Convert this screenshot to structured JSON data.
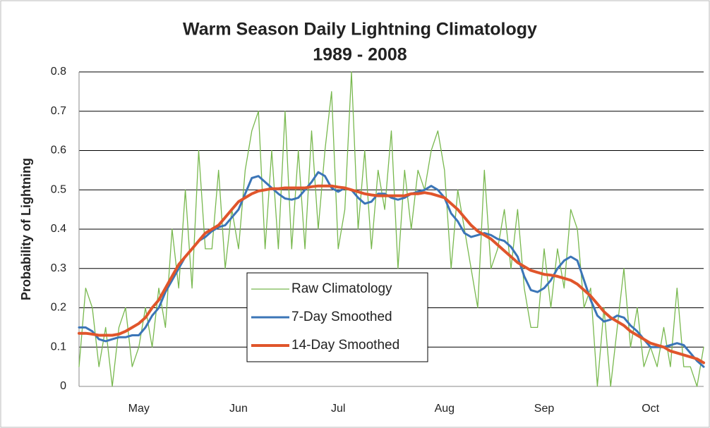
{
  "chart_data": {
    "type": "line",
    "title": "Warm Season Daily Lightning Climatology",
    "subtitle": "1989 - 2008",
    "y_label": "Probability of Lightning",
    "categories": [
      null,
      null,
      null,
      null,
      null,
      null,
      null,
      null,
      null,
      "May",
      null,
      null,
      null,
      null,
      null,
      null,
      null,
      null,
      null,
      null,
      null,
      null,
      null,
      null,
      "Jun",
      null,
      null,
      null,
      null,
      null,
      null,
      null,
      null,
      null,
      null,
      null,
      null,
      null,
      null,
      "Jul",
      null,
      null,
      null,
      null,
      null,
      null,
      null,
      null,
      null,
      null,
      null,
      null,
      null,
      null,
      null,
      "Aug",
      null,
      null,
      null,
      null,
      null,
      null,
      null,
      null,
      null,
      null,
      null,
      null,
      null,
      null,
      "Sep",
      null,
      null,
      null,
      null,
      null,
      null,
      null,
      null,
      null,
      null,
      null,
      null,
      null,
      null,
      null,
      "Oct",
      null,
      null,
      null,
      null,
      null,
      null,
      null,
      null
    ],
    "series": [
      {
        "name": "Raw Climatology",
        "color": "#78b84e",
        "width": 1.3,
        "values": [
          0.05,
          0.25,
          0.2,
          0.05,
          0.15,
          0,
          0.15,
          0.2,
          0.05,
          0.1,
          0.2,
          0.1,
          0.25,
          0.15,
          0.4,
          0.25,
          0.5,
          0.25,
          0.6,
          0.35,
          0.35,
          0.55,
          0.3,
          0.45,
          0.35,
          0.55,
          0.65,
          0.7,
          0.35,
          0.6,
          0.35,
          0.7,
          0.35,
          0.6,
          0.35,
          0.65,
          0.4,
          0.6,
          0.75,
          0.35,
          0.45,
          0.8,
          0.4,
          0.6,
          0.35,
          0.55,
          0.45,
          0.65,
          0.3,
          0.55,
          0.4,
          0.55,
          0.5,
          0.6,
          0.65,
          0.55,
          0.3,
          0.5,
          0.4,
          0.3,
          0.2,
          0.55,
          0.3,
          0.35,
          0.45,
          0.3,
          0.45,
          0.25,
          0.15,
          0.15,
          0.35,
          0.2,
          0.35,
          0.25,
          0.45,
          0.4,
          0.2,
          0.25,
          0,
          0.2,
          0,
          0.15,
          0.3,
          0.1,
          0.2,
          0.05,
          0.1,
          0.05,
          0.15,
          0.05,
          0.25,
          0.05,
          0.05,
          0,
          0.1
        ]
      },
      {
        "name": "7-Day Smoothed",
        "color": "#3b75b7",
        "width": 3,
        "values": [
          0.15,
          0.15,
          0.14,
          0.12,
          0.115,
          0.12,
          0.125,
          0.125,
          0.13,
          0.13,
          0.15,
          0.18,
          0.2,
          0.24,
          0.27,
          0.3,
          0.33,
          0.35,
          0.37,
          0.38,
          0.395,
          0.405,
          0.41,
          0.43,
          0.45,
          0.49,
          0.53,
          0.535,
          0.52,
          0.505,
          0.49,
          0.478,
          0.475,
          0.48,
          0.5,
          0.52,
          0.545,
          0.535,
          0.505,
          0.495,
          0.505,
          0.5,
          0.48,
          0.465,
          0.47,
          0.49,
          0.49,
          0.48,
          0.475,
          0.48,
          0.49,
          0.495,
          0.5,
          0.51,
          0.5,
          0.48,
          0.44,
          0.42,
          0.39,
          0.38,
          0.385,
          0.39,
          0.385,
          0.375,
          0.37,
          0.355,
          0.33,
          0.28,
          0.245,
          0.24,
          0.25,
          0.27,
          0.3,
          0.32,
          0.33,
          0.32,
          0.27,
          0.22,
          0.18,
          0.165,
          0.17,
          0.18,
          0.175,
          0.155,
          0.14,
          0.12,
          0.1,
          0.1,
          0.1,
          0.105,
          0.11,
          0.105,
          0.085,
          0.065,
          0.05
        ]
      },
      {
        "name": "14-Day Smoothed",
        "color": "#e0552b",
        "width": 4,
        "values": [
          0.135,
          0.135,
          0.133,
          0.13,
          0.13,
          0.13,
          0.133,
          0.14,
          0.15,
          0.16,
          0.175,
          0.2,
          0.22,
          0.25,
          0.28,
          0.31,
          0.33,
          0.35,
          0.37,
          0.39,
          0.4,
          0.41,
          0.43,
          0.45,
          0.47,
          0.48,
          0.49,
          0.497,
          0.5,
          0.503,
          0.503,
          0.505,
          0.505,
          0.505,
          0.505,
          0.508,
          0.51,
          0.51,
          0.51,
          0.507,
          0.505,
          0.5,
          0.495,
          0.49,
          0.487,
          0.485,
          0.485,
          0.485,
          0.485,
          0.485,
          0.49,
          0.49,
          0.493,
          0.49,
          0.485,
          0.48,
          0.465,
          0.45,
          0.43,
          0.41,
          0.395,
          0.385,
          0.375,
          0.36,
          0.345,
          0.33,
          0.315,
          0.305,
          0.295,
          0.29,
          0.285,
          0.283,
          0.28,
          0.275,
          0.27,
          0.26,
          0.245,
          0.23,
          0.21,
          0.19,
          0.175,
          0.165,
          0.155,
          0.14,
          0.13,
          0.12,
          0.11,
          0.105,
          0.1,
          0.09,
          0.085,
          0.08,
          0.075,
          0.07,
          0.06
        ]
      }
    ],
    "ylim": [
      0,
      0.8
    ],
    "yticks": [
      0,
      0.1,
      0.2,
      0.3,
      0.4,
      0.5,
      0.6,
      0.7,
      0.8
    ],
    "grid": true,
    "legend": "center"
  }
}
